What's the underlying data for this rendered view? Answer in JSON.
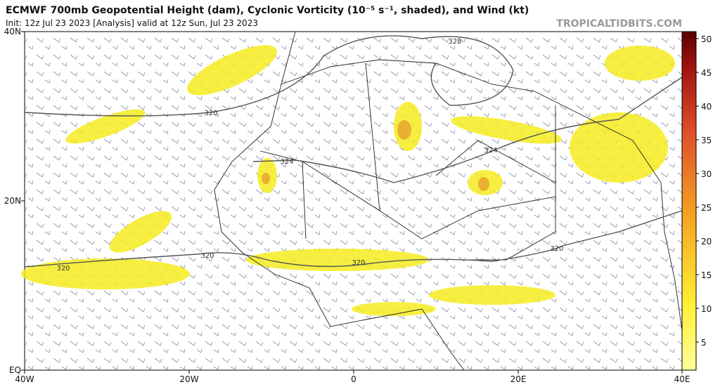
{
  "header": {
    "title": "ECMWF 700mb Geopotential Height (dam), Cyclonic Vorticity (10⁻⁵ s⁻¹, shaded), and Wind (kt)",
    "init": "Init: 12z Jul 23 2023   [Analysis]   valid at 12z Sun, Jul 23 2023",
    "watermark": "TROPICALTIDBITS.COM"
  },
  "map": {
    "lat_labels": [
      "40N",
      "20N",
      "EQ"
    ],
    "lon_labels": [
      "40W",
      "20W",
      "0",
      "20E",
      "40E"
    ],
    "contour_labels": [
      "328",
      "320",
      "324",
      "324",
      "320",
      "320",
      "320",
      "320"
    ]
  },
  "colorbar": {
    "ticks": [
      5,
      10,
      15,
      20,
      25,
      30,
      35,
      40,
      45,
      50
    ]
  }
}
